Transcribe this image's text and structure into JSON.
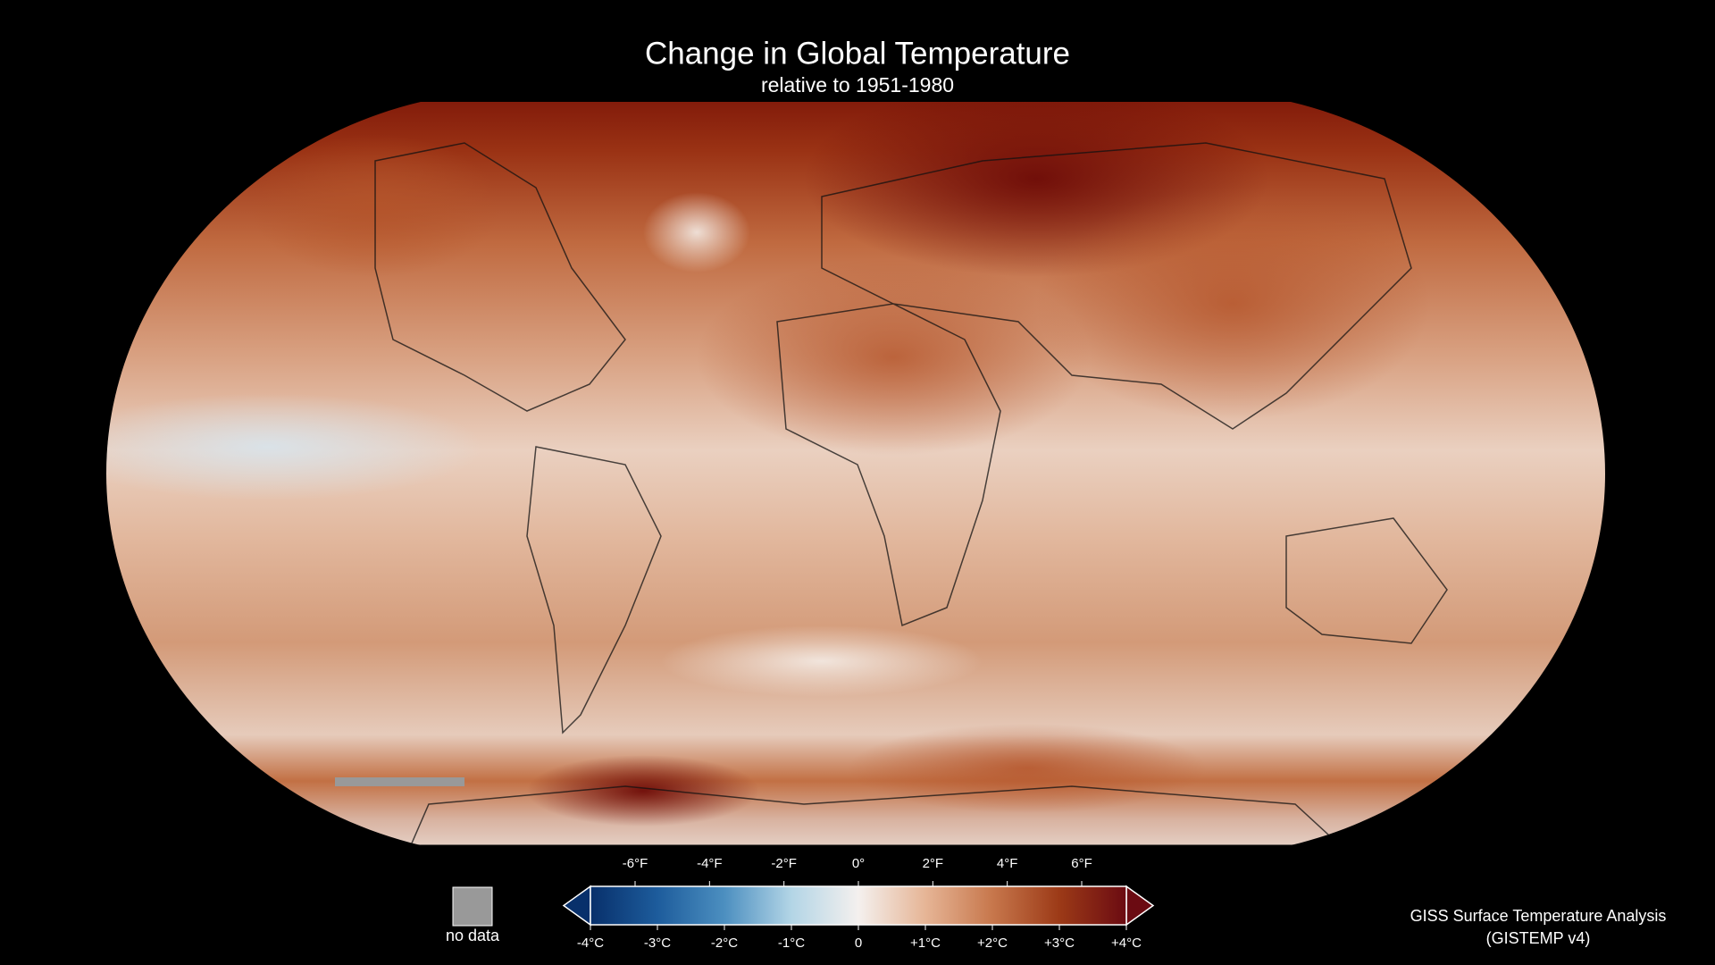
{
  "title": "Change in Global Temperature",
  "subtitle": "relative to 1951-1980",
  "legend": {
    "range_c": [
      -4,
      4
    ],
    "range_f": [
      -7.2,
      7.2
    ],
    "colors": [
      "#08306b",
      "#1d5c9c",
      "#4c8fc0",
      "#b3d5e6",
      "#f4f0ee",
      "#e6b596",
      "#c7774c",
      "#9c3a17",
      "#6b0b12"
    ],
    "celsius_ticks": [
      {
        "value": -4,
        "label": "-4°C"
      },
      {
        "value": -3,
        "label": "-3°C"
      },
      {
        "value": -2,
        "label": "-2°C"
      },
      {
        "value": -1,
        "label": "-1°C"
      },
      0,
      {
        "value": 1,
        "label": "+1°C"
      },
      {
        "value": 2,
        "label": "+2°C"
      },
      {
        "value": 3,
        "label": "+3°C"
      },
      {
        "value": 4,
        "label": "+4°C"
      }
    ],
    "fahrenheit_ticks": [
      {
        "value": -6,
        "label": "-6°F"
      },
      {
        "value": -4,
        "label": "-4°F"
      },
      {
        "value": -2,
        "label": "-2°F"
      },
      {
        "value": 0,
        "label": "0°"
      },
      {
        "value": 2,
        "label": "2°F"
      },
      {
        "value": 4,
        "label": "4°F"
      },
      {
        "value": 6,
        "label": "6°F"
      }
    ],
    "no_data_label": "no data",
    "no_data_color": "#999999"
  },
  "credit": [
    "GISS Surface Temperature Analysis",
    "(GISTEMP v4)"
  ]
}
